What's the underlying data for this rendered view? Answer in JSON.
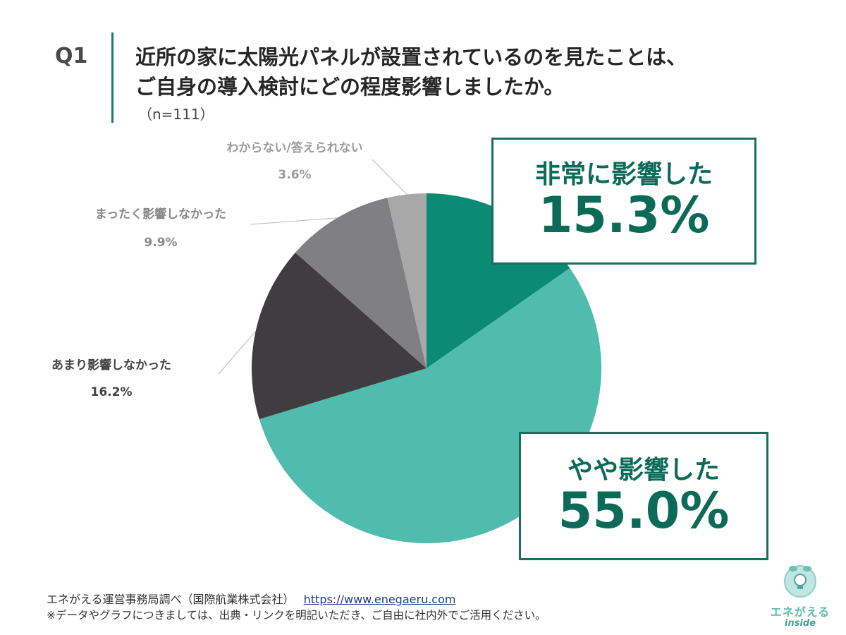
{
  "question": {
    "number": "Q1",
    "line1": "近所の家に太陽光パネルが設置されているのを見たことは、",
    "line2": "ご自身の導入検討にどの程度影響しましたか。",
    "sample": "（n=111）"
  },
  "colors": {
    "accent": "#1a6e5c",
    "slice_1": "#0b8a74",
    "slice_2": "#50bcae",
    "slice_3": "#3f3d40",
    "slice_4": "#807f81",
    "slice_5": "#a8a8a8"
  },
  "chart_data": {
    "type": "pie",
    "slices": [
      {
        "label": "非常に影響した",
        "value": 15.3,
        "display": "15.3%",
        "color": "#0b8a74"
      },
      {
        "label": "やや影響した",
        "value": 55.0,
        "display": "55.0%",
        "color": "#50bcae"
      },
      {
        "label": "あまり影響しなかった",
        "value": 16.2,
        "display": "16.2%",
        "color": "#3f3d40"
      },
      {
        "label": "まったく影響しなかった",
        "value": 9.9,
        "display": "9.9%",
        "color": "#807f81"
      },
      {
        "label": "わからない/答えられない",
        "value": 3.6,
        "display": "3.6%",
        "color": "#a8a8a8"
      }
    ],
    "start_angle": "12 o'clock",
    "direction": "clockwise"
  },
  "footer": {
    "source": "エネがえる運営事務局調べ（国際航業株式会社）",
    "url": "https://www.enegaeru.com",
    "note": "※データやグラフにつきましては、出典・リンクを明記いただき、ご自由に社内外でご活用ください。"
  },
  "logo": {
    "name": "エネがえる",
    "sub": "inside",
    "icon": "lightbulb-globe-icon"
  }
}
